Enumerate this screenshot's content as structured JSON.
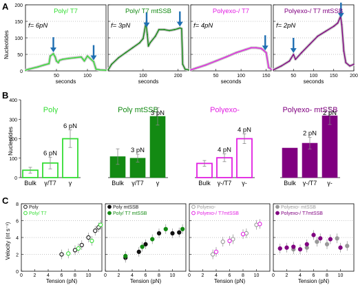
{
  "figure": {
    "panel_letters": [
      "A",
      "B",
      "C"
    ],
    "colors": {
      "light_green": "#33dd33",
      "dark_green": "#138a13",
      "magenta": "#e21ee2",
      "purple": "#800080",
      "arrow_blue": "#1f6fb2",
      "gray": "#999999",
      "black": "#111111"
    }
  },
  "chart_data": [
    {
      "panel": "A",
      "type": "line",
      "ylabel": "Nucleotides",
      "xlabel": "seconds",
      "ylim": [
        0,
        200
      ],
      "yticks": [
        0,
        50,
        100,
        150,
        200
      ],
      "grid": "dotted horizontal",
      "subplots": [
        {
          "title": "Polγ/ T7",
          "force": "f= 6pN",
          "xlim": [
            0,
            130
          ],
          "xticks": [
            50,
            100
          ],
          "x": [
            0,
            5,
            20,
            30,
            38,
            40,
            45,
            48,
            50,
            53,
            55,
            60,
            70,
            80,
            90,
            93,
            95,
            100,
            110,
            113,
            114,
            120,
            130
          ],
          "y": [
            2,
            5,
            12,
            18,
            22,
            45,
            52,
            42,
            30,
            25,
            32,
            35,
            38,
            40,
            42,
            35,
            30,
            45,
            28,
            10,
            5,
            3,
            2
          ],
          "arrows_x": [
            45,
            110
          ]
        },
        {
          "title": "Polγ/ T7 mtSSB",
          "force": "f= 3pN",
          "xlim": [
            0,
            230
          ],
          "xticks": [
            100,
            200
          ],
          "x": [
            0,
            10,
            30,
            50,
            70,
            90,
            100,
            108,
            112,
            115,
            120,
            135,
            145,
            160,
            175,
            190,
            200,
            205,
            210,
            213,
            220,
            230
          ],
          "y": [
            3,
            20,
            40,
            55,
            70,
            85,
            98,
            145,
            110,
            75,
            85,
            105,
            125,
            125,
            122,
            125,
            128,
            130,
            128,
            20,
            5,
            3
          ],
          "arrows_x": [
            110,
            205
          ]
        },
        {
          "title": "Polγexo-/ T7",
          "force": "f= 4pN",
          "xlim": [
            0,
            160
          ],
          "xticks": [
            50,
            100,
            150
          ],
          "x": [
            0,
            10,
            30,
            50,
            70,
            90,
            110,
            120,
            130,
            140,
            145,
            150,
            155,
            160
          ],
          "y": [
            3,
            8,
            18,
            30,
            42,
            55,
            65,
            70,
            70,
            68,
            62,
            55,
            10,
            5
          ],
          "arrows_x": [
            148
          ]
        },
        {
          "title": "Polγexo-/ T7 mtSSB",
          "force": "f= 2pN",
          "xlim": [
            0,
            200
          ],
          "xticks": [
            50,
            100,
            150,
            200
          ],
          "x": [
            0,
            20,
            40,
            50,
            55,
            70,
            90,
            110,
            130,
            150,
            160,
            167,
            170,
            175,
            180,
            190,
            200
          ],
          "y": [
            3,
            15,
            30,
            50,
            35,
            55,
            80,
            105,
            120,
            135,
            145,
            165,
            140,
            60,
            25,
            15,
            20
          ],
          "arrows_x": [
            50,
            168
          ]
        }
      ]
    },
    {
      "panel": "B",
      "type": "bar",
      "ylabel": "Nucleotides",
      "ylim": [
        0,
        400
      ],
      "yticks": [
        0,
        100,
        200,
        300,
        400
      ],
      "groups": [
        {
          "title": "Polγ",
          "style": "outline",
          "categories": [
            "Bulk",
            "γ/T7",
            "γ"
          ],
          "values": [
            38,
            75,
            200
          ],
          "errors": [
            15,
            30,
            45
          ],
          "labels": [
            "",
            "6 pN",
            "6 pN"
          ]
        },
        {
          "title": "Polγ mtSSB",
          "style": "filled",
          "categories": [
            "Bulk",
            "γ/T7",
            "γ"
          ],
          "values": [
            108,
            100,
            315
          ],
          "errors": [
            40,
            20,
            45
          ],
          "labels": [
            "",
            "3 pN",
            "3 pN"
          ]
        },
        {
          "title": "Polγexo-",
          "style": "outline",
          "categories": [
            "Bulk",
            "γ-/T7",
            "γ-"
          ],
          "values": [
            73,
            102,
            200
          ],
          "errors": [
            15,
            20,
            25
          ],
          "labels": [
            "",
            "4 pN",
            "4 pN"
          ]
        },
        {
          "title": "Polγexo- mtSSB",
          "style": "filled",
          "categories": [
            "Bulk",
            "γ-/T7",
            "γ-"
          ],
          "values": [
            152,
            177,
            318
          ],
          "errors": [
            0,
            30,
            45
          ],
          "labels": [
            "",
            "2 pN",
            "2 pN"
          ]
        }
      ]
    },
    {
      "panel": "C",
      "type": "scatter",
      "ylabel": "Velocity (nt s⁻¹)",
      "xlabel": "Tension (pN)",
      "ylim": [
        0,
        8
      ],
      "yticks": [
        0,
        2,
        4,
        6,
        8
      ],
      "xlim": [
        0,
        12
      ],
      "xticks": [
        0,
        2,
        4,
        6,
        8,
        10
      ],
      "subplots": [
        {
          "series": [
            {
              "name": "Polγ",
              "marker": "open-circle",
              "x": [
                6,
                8,
                9,
                10,
                11,
                11.5
              ],
              "y": [
                2.0,
                2.5,
                3.1,
                4.0,
                4.8,
                5.2
              ]
            },
            {
              "name": "Polγ/ T7",
              "marker": "open-circle",
              "x": [
                7,
                8.5,
                10.5,
                11.8
              ],
              "y": [
                2.1,
                2.7,
                3.6,
                5.5
              ]
            }
          ]
        },
        {
          "series": [
            {
              "name": "Polγ mtSSB",
              "marker": "filled-circle",
              "x": [
                3,
                5,
                6,
                8,
                10,
                11
              ],
              "y": [
                1.6,
                2.3,
                3.2,
                4.5,
                4.5,
                4.6
              ]
            },
            {
              "name": "Polγ/ T7 mtSSB",
              "marker": "filled-circle",
              "x": [
                3,
                5.5,
                7,
                9,
                11.5
              ],
              "y": [
                1.8,
                2.9,
                3.8,
                5.0,
                5.0
              ]
            }
          ]
        },
        {
          "series": [
            {
              "name": "Polγexo-",
              "marker": "open-circle",
              "x": [
                3.5,
                5,
                6.5,
                8.5,
                10
              ],
              "y": [
                2.0,
                3.5,
                3.8,
                4.5,
                5.5
              ]
            },
            {
              "name": "Polγexo-/ T7mtSSB",
              "marker": "open-circle",
              "x": [
                4,
                6,
                8,
                10.5
              ],
              "y": [
                2.3,
                3.6,
                4.4,
                5.6
              ]
            }
          ]
        },
        {
          "series": [
            {
              "name": "Polγexo- mtSSB",
              "marker": "filled-circle",
              "x": [
                3,
                5,
                6.5,
                8,
                9.5,
                11
              ],
              "y": [
                2.6,
                2.8,
                3.5,
                3.2,
                3.9,
                3.0
              ]
            },
            {
              "name": "Polγexo-/ T7mtSSB",
              "marker": "filled-circle",
              "x": [
                1,
                2,
                3,
                4,
                5,
                6,
                7,
                8.5,
                10
              ],
              "y": [
                2.7,
                2.8,
                2.9,
                2.6,
                3.2,
                4.3,
                3.9,
                3.8,
                2.8
              ]
            }
          ]
        }
      ]
    }
  ]
}
